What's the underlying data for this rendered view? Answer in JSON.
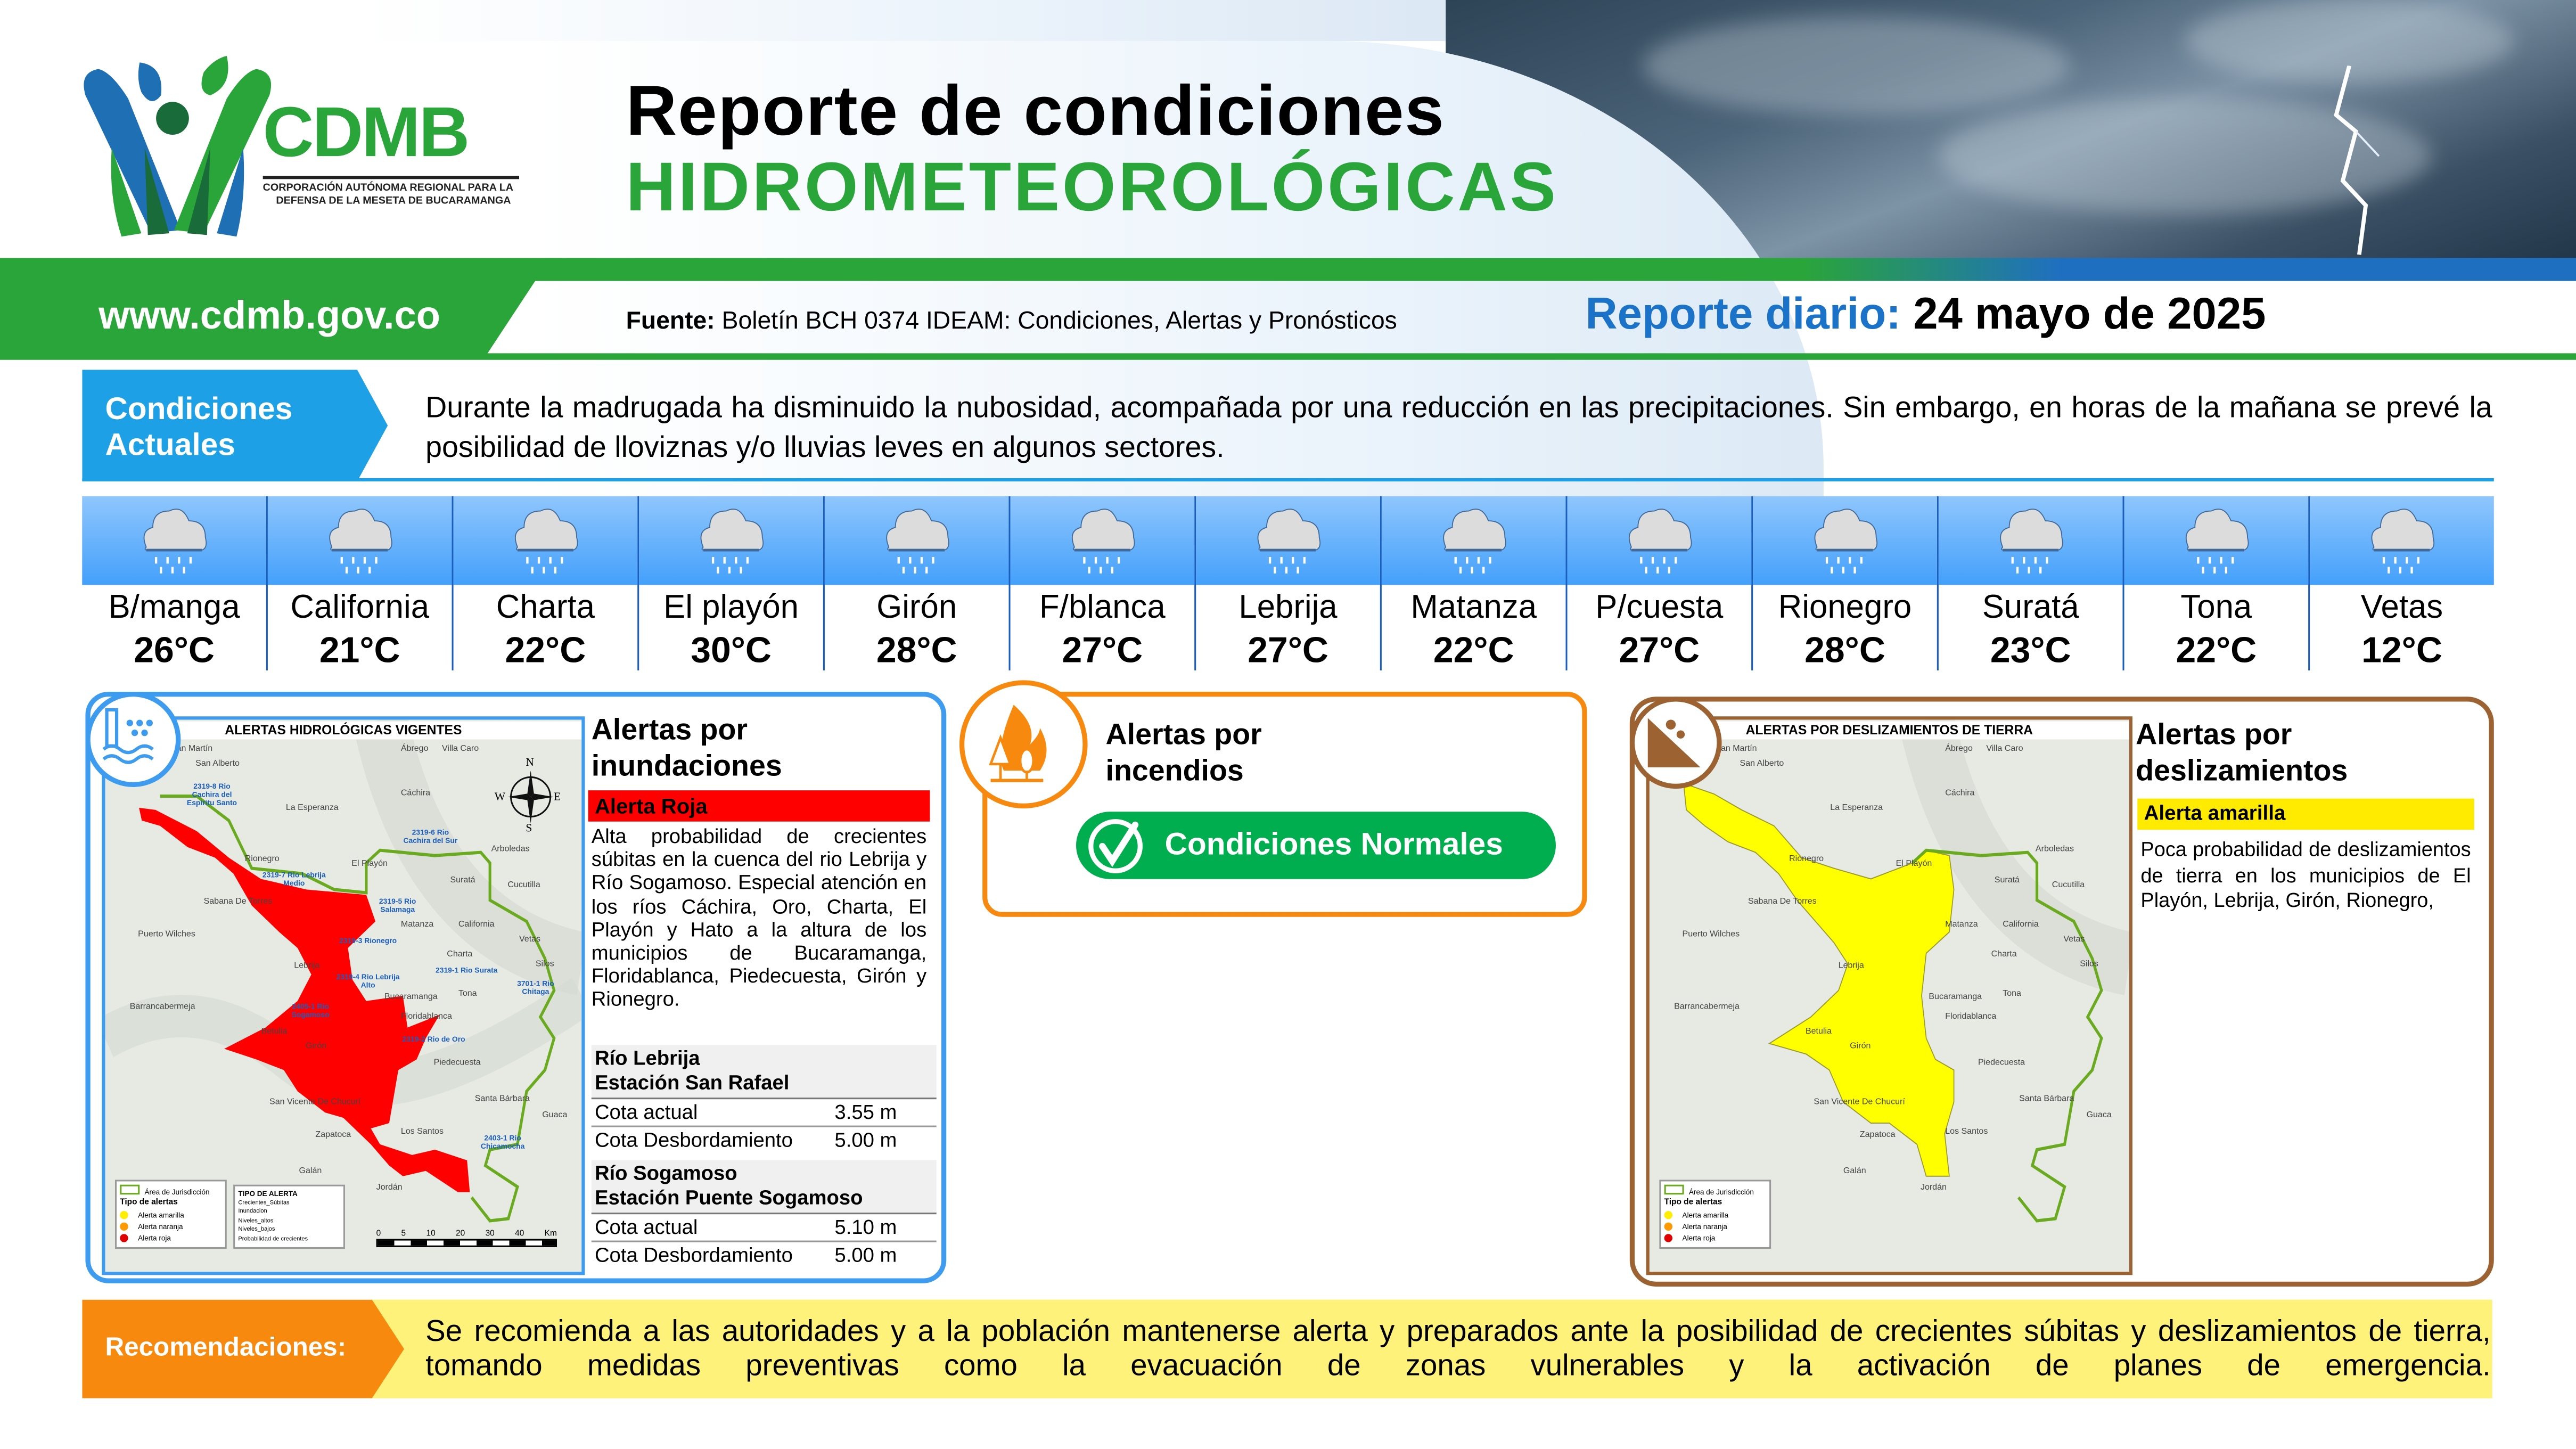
{
  "header": {
    "logo": {
      "name": "CDMB",
      "subtitle_line1": "CORPORACIÓN AUTÓNOMA REGIONAL PARA LA",
      "subtitle_line2": "DEFENSA DE LA MESETA DE BUCARAMANGA"
    },
    "title_line1": "Reporte de condiciones",
    "title_line2": "HIDROMETEOROLÓGICAS",
    "website": "www.cdmb.gov.co",
    "source_label": "Fuente:",
    "source_text": "Boletín BCH 0374 IDEAM: Condiciones, Alertas y Pronósticos",
    "report_label": "Reporte diario:",
    "report_date": "24 mayo de 2025"
  },
  "conditions": {
    "label_line1": "Condiciones",
    "label_line2": "Actuales",
    "text": "Durante la madrugada ha disminuido la nubosidad, acompañada por una reducción en las precipitaciones. Sin embargo, en horas de la mañana se prevé la posibilidad de lloviznas y/o lluvias leves en algunos sectores."
  },
  "weather": [
    {
      "name": "B/manga",
      "temp": "26°C",
      "icon": "rain-cloud-icon"
    },
    {
      "name": "California",
      "temp": "21°C",
      "icon": "rain-cloud-icon"
    },
    {
      "name": "Charta",
      "temp": "22°C",
      "icon": "rain-cloud-icon"
    },
    {
      "name": "El playón",
      "temp": "30°C",
      "icon": "rain-cloud-icon"
    },
    {
      "name": "Girón",
      "temp": "28°C",
      "icon": "rain-cloud-icon"
    },
    {
      "name": "F/blanca",
      "temp": "27°C",
      "icon": "rain-cloud-icon"
    },
    {
      "name": "Lebrija",
      "temp": "27°C",
      "icon": "rain-cloud-icon"
    },
    {
      "name": "Matanza",
      "temp": "22°C",
      "icon": "rain-cloud-icon"
    },
    {
      "name": "P/cuesta",
      "temp": "27°C",
      "icon": "rain-cloud-icon"
    },
    {
      "name": "Rionegro",
      "temp": "28°C",
      "icon": "rain-cloud-icon"
    },
    {
      "name": "Suratá",
      "temp": "23°C",
      "icon": "rain-cloud-icon"
    },
    {
      "name": "Tona",
      "temp": "22°C",
      "icon": "rain-cloud-icon"
    },
    {
      "name": "Vetas",
      "temp": "12°C",
      "icon": "rain-cloud-icon"
    }
  ],
  "flood": {
    "title_line1": "Alertas por",
    "title_line2": "inundaciones",
    "alert_level": "Alerta Roja",
    "alert_color": "#ff0000",
    "description": "Alta probabilidad de crecientes súbitas en la cuenca del rio Lebrija y Río Sogamoso. Especial atención en los ríos Cáchira, Oro, Charta, El Playón y Hato a la altura de los municipios de Bucaramanga, Floridablanca, Piedecuesta, Girón y Rionegro.",
    "stations": [
      {
        "river": "Río Lebrija",
        "station": "Estación San Rafael",
        "rows": [
          {
            "label": "Cota actual",
            "value": "3.55 m"
          },
          {
            "label": "Cota Desbordamiento",
            "value": "5.00 m"
          }
        ]
      },
      {
        "river": "Río Sogamoso",
        "station": "Estación Puente Sogamoso",
        "rows": [
          {
            "label": "Cota actual",
            "value": "5.10 m"
          },
          {
            "label": "Cota Desbordamiento",
            "value": "5.00 m"
          }
        ]
      }
    ],
    "map": {
      "title": "ALERTAS HIDROLÓGICAS VIGENTES",
      "places": [
        "San Martín",
        "San Alberto",
        "Ábrego",
        "Villa Caro",
        "Cáchira",
        "La Esperanza",
        "Arboledas",
        "El Playón",
        "Rionegro",
        "Suratá",
        "Cucutilla",
        "Sabana De Torres",
        "Puerto Wilches",
        "Matanza",
        "California",
        "Vetas",
        "Charta",
        "Silos",
        "Lebrija",
        "Tona",
        "Bucaramanga",
        "Barrancabermeja",
        "Floridablanca",
        "Betulia",
        "Girón",
        "Piedecuesta",
        "San Vicente De Chucurí",
        "Santa Bárbara",
        "Guaca",
        "Zapatoca",
        "Los Santos",
        "Galán",
        "Jordán"
      ],
      "stations": [
        "2319-8 Rio Cachira del Espiritu Santo",
        "2319-7 Rio Lebrija Medio",
        "2319-6 Rio Cachira del Sur",
        "2319-5 Rio Salamaga",
        "2319-3 Rionegro",
        "2319-1 Rio Surata",
        "2319-4 Rio Lebrija Alto",
        "2405-1 Rio Sogamoso",
        "3701-1 Rio Chitaga",
        "2319-2 Rio de Oro",
        "2403-1 Rio Chicamocha"
      ],
      "compass": [
        "N",
        "S",
        "E",
        "W"
      ],
      "legend_area": "Área de Jurisdicción",
      "legend_title": "Tipo de alertas",
      "legend_items": [
        "Alerta amarilla",
        "Alerta naranja",
        "Alerta roja"
      ],
      "legend_colors": [
        "#ffee00",
        "#ff9900",
        "#e00000"
      ],
      "type_title": "TIPO DE ALERTA",
      "type_items": [
        "Crecientes_Súbitas",
        "Inundacion",
        "Niveles_altos",
        "Niveles_bajos",
        "Probabilidad de crecientes"
      ],
      "scale": [
        "0",
        "5",
        "10",
        "20",
        "30",
        "40",
        "Km"
      ]
    }
  },
  "fire": {
    "title_line1": "Alertas por",
    "title_line2": "incendios",
    "status": "Condiciones Normales",
    "status_color": "#00ad4f"
  },
  "landslide": {
    "title_line1": "Alertas por",
    "title_line2": "deslizamientos",
    "alert_level": "Alerta amarilla",
    "alert_color": "#ffeb00",
    "description": "Poca probabilidad de deslizamientos de tierra en los municipios de El Playón, Lebrija, Girón, Rionegro,",
    "map": {
      "title": "ALERTAS POR DESLIZAMIENTOS DE TIERRA"
    }
  },
  "recommendations": {
    "label": "Recomendaciones:",
    "text": "Se recomienda a las autoridades y a la población mantenerse alerta y preparados ante la posibilidad de crecientes súbitas y deslizamientos de tierra, tomando medidas preventivas como la evacuación de zonas vulnerables y la activación de planes de emergencia."
  },
  "colors": {
    "brand_green": "#2aa53a",
    "brand_blue": "#1a73c8",
    "flood_border": "#3d9cf0",
    "fire_border": "#f7890f",
    "slide_border": "#9c6232"
  }
}
